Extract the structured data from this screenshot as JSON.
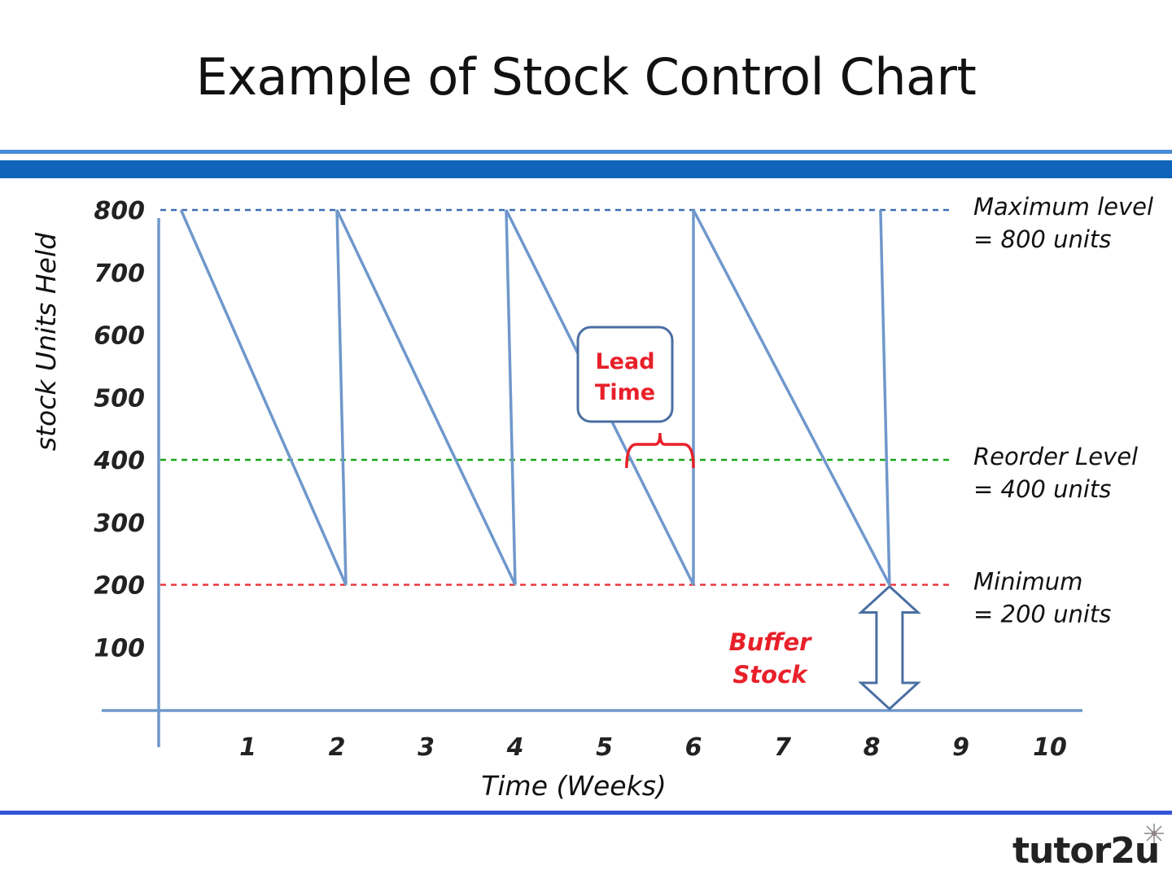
{
  "slide": {
    "title": "Example of Stock Control Chart",
    "logo_text": "tutor2u"
  },
  "colors": {
    "stock_line": "#6f98cc",
    "axis": "#6f98cc",
    "maximum_line": "#3d6db3",
    "reorder_line": "#1aa51a",
    "minimum_line": "#e8393f",
    "annotation_red": "#e8202a"
  },
  "chart_data": {
    "type": "line",
    "title": "Example of Stock Control Chart",
    "xlabel": "Time (Weeks)",
    "ylabel": "stock Units Held",
    "x_ticks": [
      1,
      2,
      3,
      4,
      5,
      6,
      7,
      8,
      9,
      10
    ],
    "y_ticks": [
      100,
      200,
      300,
      400,
      500,
      600,
      700,
      800
    ],
    "xlim": [
      0.25,
      10.6
    ],
    "ylim": [
      0,
      840
    ],
    "grid": false,
    "series": [
      {
        "x": [
          0.25,
          2.1,
          2.0,
          4.0,
          3.9,
          6.0,
          6.0,
          8.2,
          8.1
        ],
        "y": [
          800,
          200,
          800,
          200,
          800,
          200,
          800,
          200,
          800
        ]
      }
    ],
    "reference_lines": [
      {
        "value": 800,
        "label_line1": "Maximum level",
        "label_line2": "= 800 units",
        "style": "dashed",
        "color": "#3d6db3"
      },
      {
        "value": 400,
        "label_line1": "Reorder Level",
        "label_line2": "= 400 units",
        "style": "dashed",
        "color": "#1aa51a"
      },
      {
        "value": 200,
        "label_line1": "Minimum",
        "label_line2": "= 200 units",
        "style": "dashed",
        "color": "#e8393f"
      }
    ],
    "annotations": {
      "lead_time": {
        "line1": "Lead",
        "line2": "Time",
        "x_start": 5.25,
        "x_end": 6.0
      },
      "buffer_stock": {
        "line1": "Buffer",
        "line2": "Stock",
        "x": 8.2,
        "y_from": 0,
        "y_to": 200
      }
    }
  }
}
